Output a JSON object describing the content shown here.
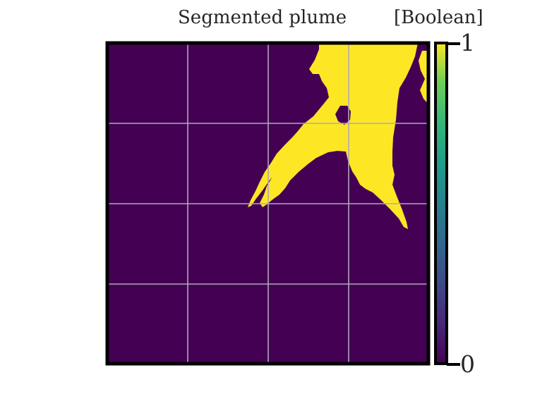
{
  "chart_data": {
    "type": "heatmap",
    "title": "Segmented plume",
    "colorbar_label": "[Boolean]",
    "colorbar": {
      "min": 0,
      "max": 1,
      "tick_labels": [
        "0",
        "1"
      ],
      "colormap": "viridis"
    },
    "grid": true,
    "background_value": 0,
    "plume_value": 1,
    "colors": {
      "value_0": "#440154",
      "value_1": "#fde725",
      "grid": "#b0a8bc",
      "frame": "#000000",
      "text": "#262626"
    },
    "description_values": {
      "main_plume_top": 1,
      "surrounding": 0
    }
  }
}
